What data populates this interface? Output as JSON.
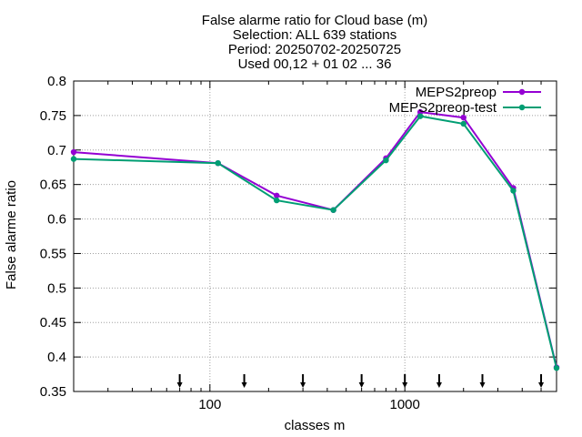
{
  "chart_data": {
    "type": "line",
    "title_lines": [
      "False alarme ratio  for Cloud base (m)",
      "Selection: ALL    639 stations",
      "Period: 20250702-20250725",
      "Used 00,12 + 01 02 ... 36"
    ],
    "xlabel": "classes m",
    "ylabel": "False alarme ratio",
    "xscale": "log",
    "xlim": [
      20,
      6000
    ],
    "ylim": [
      0.35,
      0.8
    ],
    "xticks": [
      100,
      1000
    ],
    "xtick_labels": [
      "100",
      "1000"
    ],
    "yticks": [
      0.35,
      0.4,
      0.45,
      0.5,
      0.55,
      0.6,
      0.65,
      0.7,
      0.75,
      0.8
    ],
    "ytick_labels": [
      "0.35",
      "0.4",
      "0.45",
      "0.5",
      "0.55",
      "0.6",
      "0.65",
      "0.7",
      "0.75",
      "0.8"
    ],
    "grid": true,
    "legend_position": "top-right",
    "x": [
      20,
      110,
      220,
      430,
      800,
      1200,
      2000,
      3600,
      6000
    ],
    "series": [
      {
        "name": "MEPS2preop",
        "color": "#9400d3",
        "values": [
          0.697,
          0.681,
          0.634,
          0.613,
          0.688,
          0.755,
          0.747,
          0.645,
          0.385
        ]
      },
      {
        "name": "MEPS2preop-test",
        "color": "#009e73",
        "values": [
          0.687,
          0.681,
          0.627,
          0.613,
          0.685,
          0.749,
          0.738,
          0.641,
          0.384
        ]
      }
    ],
    "arrow_markers_x": [
      70,
      150,
      300,
      600,
      1000,
      1500,
      2500,
      5000
    ]
  }
}
